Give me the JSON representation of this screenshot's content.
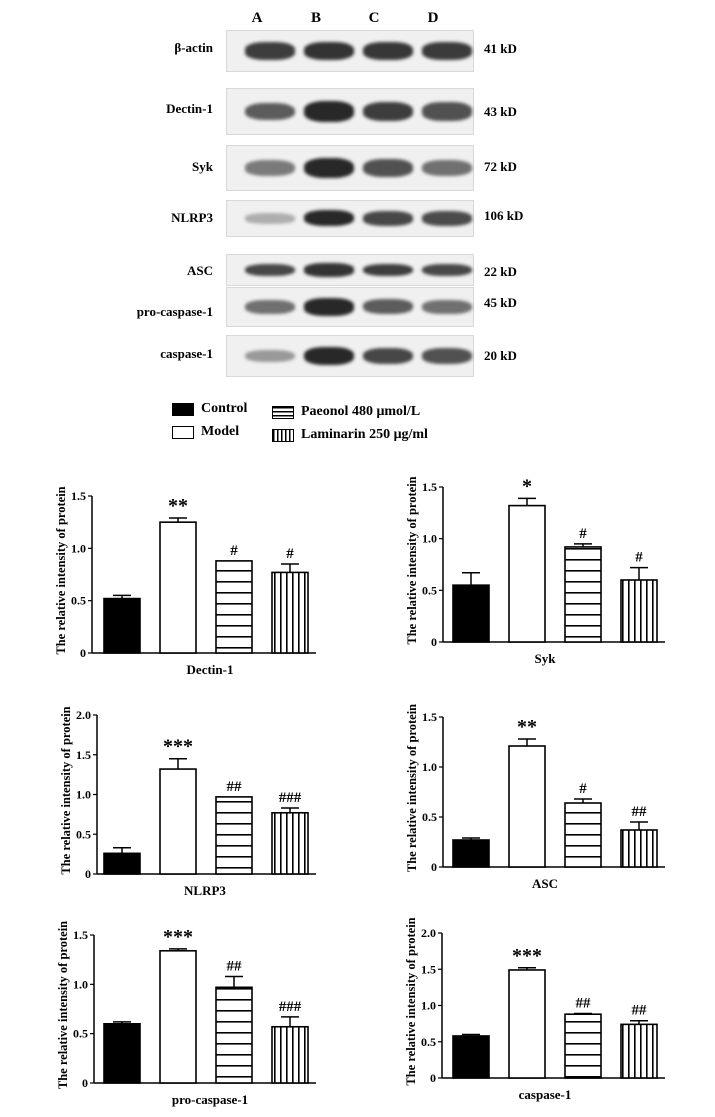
{
  "blot": {
    "lanes": [
      "A",
      "B",
      "C",
      "D"
    ],
    "rows": [
      {
        "protein": "β-actin",
        "size": "41 kD",
        "intensity": [
          0.85,
          0.9,
          0.88,
          0.86
        ]
      },
      {
        "protein": "Dectin-1",
        "size": "43 kD",
        "intensity": [
          0.7,
          0.95,
          0.85,
          0.75
        ]
      },
      {
        "protein": "Syk",
        "size": "72 kD",
        "intensity": [
          0.55,
          0.95,
          0.75,
          0.6
        ]
      },
      {
        "protein": "NLRP3",
        "size": "106 kD",
        "intensity": [
          0.3,
          0.95,
          0.8,
          0.78
        ]
      },
      {
        "protein": "ASC",
        "size": "22 kD",
        "intensity": [
          0.8,
          0.9,
          0.85,
          0.8
        ]
      },
      {
        "protein": "pro-caspase-1",
        "size": "45 kD",
        "intensity": [
          0.6,
          0.95,
          0.7,
          0.6
        ]
      },
      {
        "protein": "caspase-1",
        "size": "20 kD",
        "intensity": [
          0.4,
          0.95,
          0.8,
          0.75
        ]
      }
    ]
  },
  "legend": [
    {
      "label": "Control",
      "pattern": "solid"
    },
    {
      "label": "Model",
      "pattern": "open"
    },
    {
      "label": "Paeonol 480 μmol/L",
      "pattern": "hlines"
    },
    {
      "label": "Laminarin 250 μg/ml",
      "pattern": "vlines"
    }
  ],
  "chart_data": [
    {
      "type": "bar",
      "xlabel": "Dectin-1",
      "ylabel": "The relative intensity of protein",
      "categories": [
        "Control",
        "Model",
        "Paeonol 480 μmol/L",
        "Laminarin 250 μg/ml"
      ],
      "values": [
        0.52,
        1.25,
        0.88,
        0.77
      ],
      "errors": [
        0.03,
        0.04,
        0.0,
        0.08
      ],
      "annotations": [
        "",
        "**",
        "#",
        "#"
      ],
      "ylim": [
        0,
        1.5
      ],
      "yticks": [
        "0",
        "0.5",
        "1.0",
        "1.5"
      ]
    },
    {
      "type": "bar",
      "xlabel": "Syk",
      "ylabel": "The relative intensity of protein",
      "categories": [
        "Control",
        "Model",
        "Paeonol 480 μmol/L",
        "Laminarin 250 μg/ml"
      ],
      "values": [
        0.55,
        1.32,
        0.92,
        0.6
      ],
      "errors": [
        0.12,
        0.07,
        0.03,
        0.12
      ],
      "annotations": [
        "",
        "*",
        "#",
        "#"
      ],
      "ylim": [
        0,
        1.5
      ],
      "yticks": [
        "0",
        "0.5",
        "1.0",
        "1.5"
      ]
    },
    {
      "type": "bar",
      "xlabel": "NLRP3",
      "ylabel": "The relative intensity of protein",
      "categories": [
        "Control",
        "Model",
        "Paeonol 480 μmol/L",
        "Laminarin 250 μg/ml"
      ],
      "values": [
        0.26,
        1.32,
        0.97,
        0.77
      ],
      "errors": [
        0.07,
        0.13,
        0.0,
        0.06
      ],
      "annotations": [
        "",
        "***",
        "##",
        "###"
      ],
      "ylim": [
        0,
        2.0
      ],
      "yticks": [
        "0",
        "0.5",
        "1.0",
        "1.5",
        "2.0"
      ]
    },
    {
      "type": "bar",
      "xlabel": "ASC",
      "ylabel": "The relative intensity of protein",
      "categories": [
        "Control",
        "Model",
        "Paeonol 480 μmol/L",
        "Laminarin 250 μg/ml"
      ],
      "values": [
        0.27,
        1.21,
        0.64,
        0.37
      ],
      "errors": [
        0.02,
        0.07,
        0.04,
        0.08
      ],
      "annotations": [
        "",
        "**",
        "#",
        "##"
      ],
      "ylim": [
        0,
        1.5
      ],
      "yticks": [
        "0",
        "0.5",
        "1.0",
        "1.5"
      ]
    },
    {
      "type": "bar",
      "xlabel": "pro-caspase-1",
      "ylabel": "The relative intensity of protein",
      "categories": [
        "Control",
        "Model",
        "Paeonol 480 μmol/L",
        "Laminarin 250 μg/ml"
      ],
      "values": [
        0.6,
        1.34,
        0.97,
        0.57
      ],
      "errors": [
        0.02,
        0.02,
        0.11,
        0.1
      ],
      "annotations": [
        "",
        "***",
        "##",
        "###"
      ],
      "ylim": [
        0,
        1.5
      ],
      "yticks": [
        "0",
        "0.5",
        "1.0",
        "1.5"
      ]
    },
    {
      "type": "bar",
      "xlabel": "caspase-1",
      "ylabel": "The relative intensity of protein",
      "categories": [
        "Control",
        "Model",
        "Paeonol 480 μmol/L",
        "Laminarin 250 μg/ml"
      ],
      "values": [
        0.58,
        1.49,
        0.88,
        0.74
      ],
      "errors": [
        0.02,
        0.03,
        0.01,
        0.05
      ],
      "annotations": [
        "",
        "***",
        "##",
        "##"
      ],
      "ylim": [
        0,
        2.0
      ],
      "yticks": [
        "0",
        "0.5",
        "1.0",
        "1.5",
        "2.0"
      ]
    }
  ]
}
